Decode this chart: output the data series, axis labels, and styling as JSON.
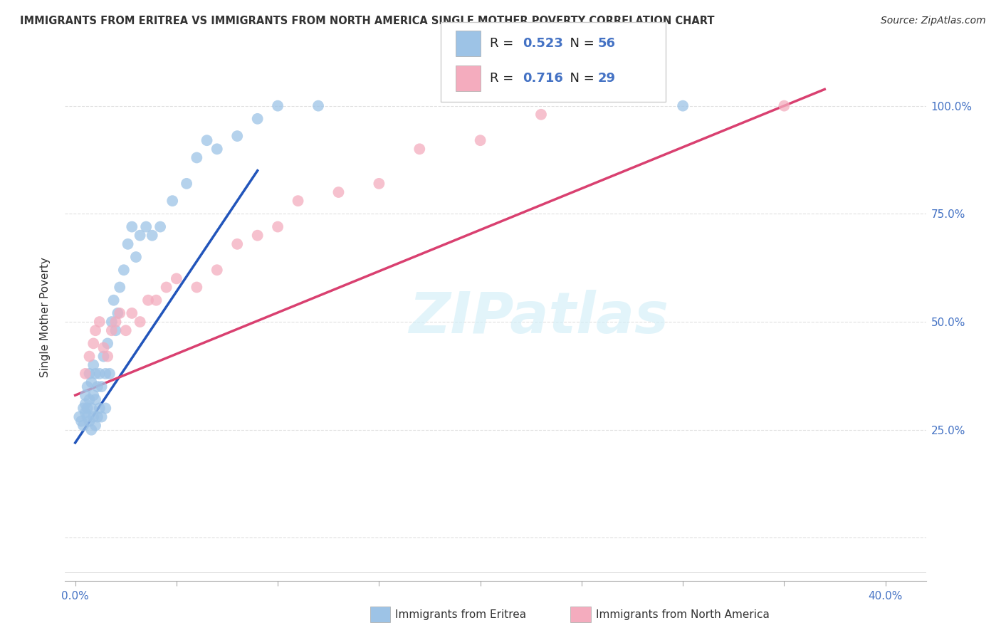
{
  "title": "IMMIGRANTS FROM ERITREA VS IMMIGRANTS FROM NORTH AMERICA SINGLE MOTHER POVERTY CORRELATION CHART",
  "source": "Source: ZipAtlas.com",
  "ylabel": "Single Mother Poverty",
  "legend_label1": "Immigrants from Eritrea",
  "legend_label2": "Immigrants from North America",
  "R1": 0.523,
  "N1": 56,
  "R2": 0.716,
  "N2": 29,
  "color1": "#9DC3E6",
  "color2": "#F4ACBE",
  "line_color1": "#2255BB",
  "line_color2": "#D94070",
  "blue_x": [
    0.002,
    0.003,
    0.004,
    0.004,
    0.005,
    0.005,
    0.005,
    0.006,
    0.006,
    0.006,
    0.007,
    0.007,
    0.007,
    0.008,
    0.008,
    0.008,
    0.009,
    0.009,
    0.009,
    0.01,
    0.01,
    0.01,
    0.011,
    0.011,
    0.012,
    0.012,
    0.013,
    0.013,
    0.014,
    0.015,
    0.015,
    0.016,
    0.017,
    0.018,
    0.019,
    0.02,
    0.021,
    0.022,
    0.024,
    0.026,
    0.028,
    0.03,
    0.032,
    0.035,
    0.038,
    0.042,
    0.048,
    0.055,
    0.06,
    0.065,
    0.07,
    0.08,
    0.09,
    0.1,
    0.12,
    0.3
  ],
  "blue_y": [
    0.28,
    0.27,
    0.3,
    0.26,
    0.29,
    0.31,
    0.33,
    0.28,
    0.3,
    0.35,
    0.27,
    0.32,
    0.38,
    0.25,
    0.3,
    0.36,
    0.28,
    0.33,
    0.4,
    0.26,
    0.32,
    0.38,
    0.28,
    0.35,
    0.3,
    0.38,
    0.28,
    0.35,
    0.42,
    0.3,
    0.38,
    0.45,
    0.38,
    0.5,
    0.55,
    0.48,
    0.52,
    0.58,
    0.62,
    0.68,
    0.72,
    0.65,
    0.7,
    0.72,
    0.7,
    0.72,
    0.78,
    0.82,
    0.88,
    0.92,
    0.9,
    0.93,
    0.97,
    1.0,
    1.0,
    1.0
  ],
  "pink_x": [
    0.005,
    0.007,
    0.009,
    0.01,
    0.012,
    0.014,
    0.016,
    0.018,
    0.02,
    0.022,
    0.025,
    0.028,
    0.032,
    0.036,
    0.04,
    0.045,
    0.05,
    0.06,
    0.07,
    0.08,
    0.09,
    0.1,
    0.11,
    0.13,
    0.15,
    0.17,
    0.2,
    0.23,
    0.35
  ],
  "pink_y": [
    0.38,
    0.42,
    0.45,
    0.48,
    0.5,
    0.44,
    0.42,
    0.48,
    0.5,
    0.52,
    0.48,
    0.52,
    0.5,
    0.55,
    0.55,
    0.58,
    0.6,
    0.58,
    0.62,
    0.68,
    0.7,
    0.72,
    0.78,
    0.8,
    0.82,
    0.9,
    0.92,
    0.98,
    1.0
  ],
  "xlim_min": -0.005,
  "xlim_max": 0.42,
  "ylim_min": -0.1,
  "ylim_max": 1.12,
  "ytick_positions": [
    0.0,
    0.25,
    0.5,
    0.75,
    1.0
  ],
  "xtick_positions": [
    0.0,
    0.05,
    0.1,
    0.15,
    0.2,
    0.25,
    0.3,
    0.35,
    0.4
  ],
  "watermark_text": "ZIPatlas",
  "background_color": "#FFFFFF",
  "grid_color": "#DDDDDD",
  "axis_color": "#4472C4",
  "text_color": "#333333"
}
